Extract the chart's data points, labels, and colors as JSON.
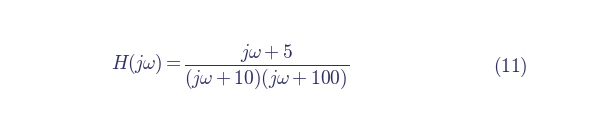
{
  "formula_lhs": "H(j\\omega) = ",
  "formula_numerator": "j\\omega + 5",
  "formula_denominator": "(j\\omega + 10)(j\\omega + 100)",
  "equation_number": "(11)",
  "background_color": "#ffffff",
  "text_color": "#2e2e6e",
  "font_size": 14,
  "eq_num_font_size": 14,
  "fig_width": 6.0,
  "fig_height": 1.33,
  "dpi": 100
}
